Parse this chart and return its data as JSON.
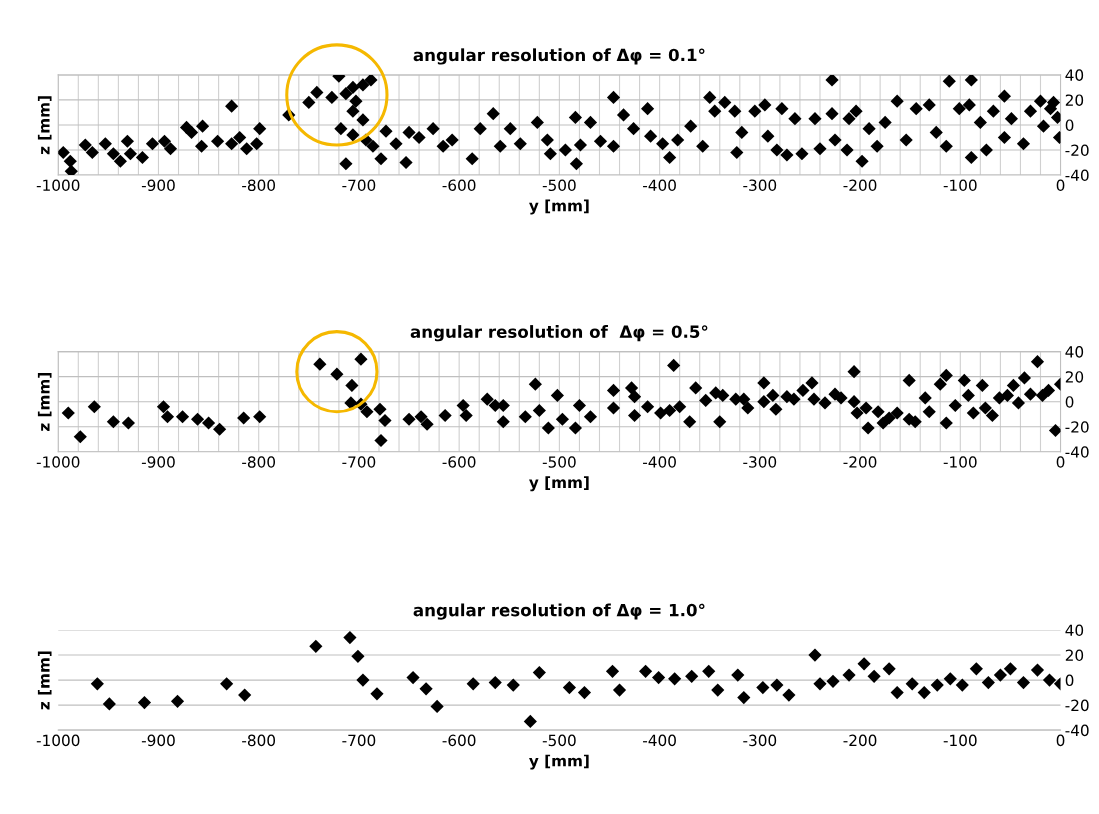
{
  "chart_data": [
    {
      "type": "scatter",
      "title": "angular resolution of Δφ = 0.1°",
      "xlabel": "y [mm]",
      "ylabel": "z [mm]",
      "color": "#000000",
      "marker": "diamond",
      "grid": true,
      "xlim": [
        -1000,
        0
      ],
      "xticks": [
        -1000,
        -900,
        -800,
        -700,
        -600,
        -500,
        -400,
        -300,
        -200,
        -100,
        0
      ],
      "ylim": [
        -40,
        40
      ],
      "yticks": [
        -40,
        -20,
        0,
        20,
        40
      ],
      "x": [
        -995,
        -987,
        -988,
        -973,
        -966,
        -953,
        -945,
        -938,
        -931,
        -928,
        -916,
        -906,
        -894,
        -888,
        -872,
        -867,
        -856,
        -857,
        -841,
        -827,
        -827,
        -819,
        -812,
        -802,
        -799,
        -770,
        -750,
        -742,
        -727,
        -720,
        -713,
        -706,
        -696,
        -688,
        -703,
        -706,
        -696,
        -718,
        -713,
        -706,
        -693,
        -686,
        -678,
        -673,
        -663,
        -653,
        -650,
        -640,
        -626,
        -616,
        -607,
        -587,
        -579,
        -566,
        -559,
        -549,
        -539,
        -522,
        -512,
        -509,
        -494,
        -483,
        -484,
        -479,
        -469,
        -459,
        -446,
        -446,
        -436,
        -426,
        -412,
        -409,
        -397,
        -390,
        -382,
        -369,
        -357,
        -350,
        -345,
        -335,
        -325,
        -323,
        -318,
        -305,
        -295,
        -292,
        -283,
        -278,
        -273,
        -265,
        -258,
        -245,
        -240,
        -228,
        -228,
        -225,
        -211,
        -213,
        -204,
        -198,
        -191,
        -183,
        -175,
        -163,
        -154,
        -144,
        -131,
        -124,
        -114,
        -111,
        -101,
        -89,
        -91,
        -89,
        -80,
        -74,
        -67,
        -56,
        -56,
        -49,
        -37,
        -30,
        -20,
        -17,
        -10,
        -3,
        -1,
        -7
      ],
      "values": [
        -22,
        -37,
        -29,
        -16,
        -22,
        -15,
        -23,
        -29,
        -13,
        -23,
        -26,
        -15,
        -13,
        -19,
        -2,
        -6,
        -1,
        -17,
        -13,
        15,
        -15,
        -10,
        -19,
        -15,
        -3,
        8,
        18,
        26,
        22,
        39,
        25,
        30,
        32,
        36,
        19,
        11,
        4,
        -3,
        -31,
        -8,
        -12,
        -17,
        -27,
        -5,
        -15,
        -30,
        -6,
        -10,
        -3,
        -17,
        -12,
        -27,
        -3,
        9,
        -17,
        -3,
        -15,
        2,
        -12,
        -23,
        -20,
        -31,
        6,
        -16,
        2,
        -13,
        22,
        -17,
        8,
        -3,
        13,
        -9,
        -15,
        -26,
        -12,
        -1,
        -17,
        22,
        11,
        18,
        11,
        -22,
        -6,
        11,
        16,
        -9,
        -20,
        13,
        -24,
        5,
        -23,
        5,
        -19,
        36,
        9,
        -12,
        5,
        -20,
        11,
        -29,
        -3,
        -17,
        2,
        19,
        -12,
        13,
        16,
        -6,
        -17,
        35,
        13,
        36,
        16,
        -26,
        2,
        -20,
        11,
        23,
        -10,
        5,
        -15,
        11,
        19,
        -1,
        13,
        6,
        -10,
        18
      ]
    },
    {
      "type": "scatter",
      "title": "angular resolution of  Δφ = 0.5°",
      "xlabel": "y [mm]",
      "ylabel": "z [mm]",
      "color": "#000000",
      "marker": "diamond",
      "grid": true,
      "xlim": [
        -1000,
        0
      ],
      "xticks": [
        -1000,
        -900,
        -800,
        -700,
        -600,
        -500,
        -400,
        -300,
        -200,
        -100,
        0
      ],
      "ylim": [
        -40,
        40
      ],
      "yticks": [
        -40,
        -20,
        0,
        20,
        40
      ],
      "x": [
        -990,
        -978,
        -964,
        -945,
        -930,
        -895,
        -891,
        -876,
        -861,
        -850,
        -839,
        -815,
        -799,
        -739,
        -722,
        -707,
        -698,
        -708,
        -698,
        -692,
        -679,
        -678,
        -674,
        -650,
        -638,
        -632,
        -614,
        -596,
        -593,
        -572,
        -564,
        -556,
        -556,
        -534,
        -524,
        -520,
        -511,
        -502,
        -497,
        -484,
        -480,
        -469,
        -446,
        -446,
        -428,
        -425,
        -425,
        -412,
        -399,
        -390,
        -386,
        -380,
        -370,
        -364,
        -354,
        -344,
        -340,
        -337,
        -324,
        -316,
        -312,
        -296,
        -296,
        -287,
        -284,
        -273,
        -266,
        -257,
        -248,
        -246,
        -235,
        -225,
        -219,
        -206,
        -206,
        -203,
        -194,
        -192,
        -182,
        -177,
        -171,
        -163,
        -151,
        -151,
        -145,
        -135,
        -131,
        -120,
        -114,
        -114,
        -105,
        -96,
        -92,
        -87,
        -78,
        -75,
        -68,
        -61,
        -53,
        -47,
        -42,
        -36,
        -30,
        -23,
        -18,
        -12,
        -5,
        0
      ],
      "values": [
        -9,
        -28,
        -4,
        -16,
        -17,
        -4,
        -12,
        -12,
        -14,
        -17,
        -22,
        -13,
        -12,
        30,
        22,
        13,
        34,
        -1,
        -2,
        -8,
        -6,
        -31,
        -15,
        -14,
        -12,
        -18,
        -11,
        -3,
        -11,
        2,
        -3,
        -3,
        -16,
        -12,
        14,
        -7,
        -21,
        5,
        -14,
        -21,
        -3,
        -12,
        9,
        -5,
        11,
        4,
        -11,
        -4,
        -9,
        -7,
        29,
        -4,
        -16,
        11,
        1,
        7,
        -16,
        5,
        2,
        2,
        -5,
        15,
        0,
        5,
        -6,
        4,
        2,
        9,
        15,
        2,
        -1,
        6,
        3,
        24,
        0,
        -9,
        -5,
        -21,
        -8,
        -17,
        -13,
        -9,
        17,
        -14,
        -16,
        3,
        -8,
        14,
        21,
        -17,
        -3,
        17,
        5,
        -9,
        13,
        -5,
        -11,
        3,
        5,
        13,
        -1,
        19,
        6,
        32,
        5,
        9,
        -23,
        14
      ]
    },
    {
      "type": "scatter",
      "title": "angular resolution of Δφ = 1.0°",
      "xlabel": "y [mm]",
      "ylabel": "z [mm]",
      "color": "#000000",
      "marker": "diamond",
      "grid": "y",
      "xlim": [
        -1000,
        0
      ],
      "xticks": [
        -1000,
        -900,
        -800,
        -700,
        -600,
        -500,
        -400,
        -300,
        -200,
        -100,
        0
      ],
      "ylim": [
        -40,
        40
      ],
      "yticks": [
        -40,
        -20,
        0,
        20,
        40
      ],
      "x": [
        -961,
        -949,
        -914,
        -881,
        -832,
        -814,
        -743,
        -709,
        -701,
        -696,
        -682,
        -646,
        -633,
        -622,
        -586,
        -564,
        -546,
        -529,
        -520,
        -490,
        -475,
        -447,
        -440,
        -414,
        -401,
        -385,
        -368,
        -351,
        -342,
        -322,
        -316,
        -297,
        -283,
        -271,
        -245,
        -240,
        -227,
        -211,
        -196,
        -186,
        -171,
        -163,
        -148,
        -136,
        -123,
        -110,
        -98,
        -84,
        -72,
        -60,
        -50,
        -37,
        -23,
        -11,
        0
      ],
      "values": [
        -3,
        -19,
        -18,
        -17,
        -3,
        -12,
        27,
        34,
        19,
        0,
        -11,
        2,
        -7,
        -21,
        -3,
        -2,
        -4,
        -33,
        6,
        -6,
        -10,
        7,
        -8,
        7,
        2,
        1,
        3,
        7,
        -8,
        4,
        -14,
        -6,
        -4,
        -12,
        20,
        -3,
        -1,
        4,
        13,
        3,
        9,
        -10,
        -3,
        -10,
        -4,
        1,
        -4,
        9,
        -2,
        4,
        9,
        -2,
        8,
        0,
        -3
      ]
    }
  ]
}
